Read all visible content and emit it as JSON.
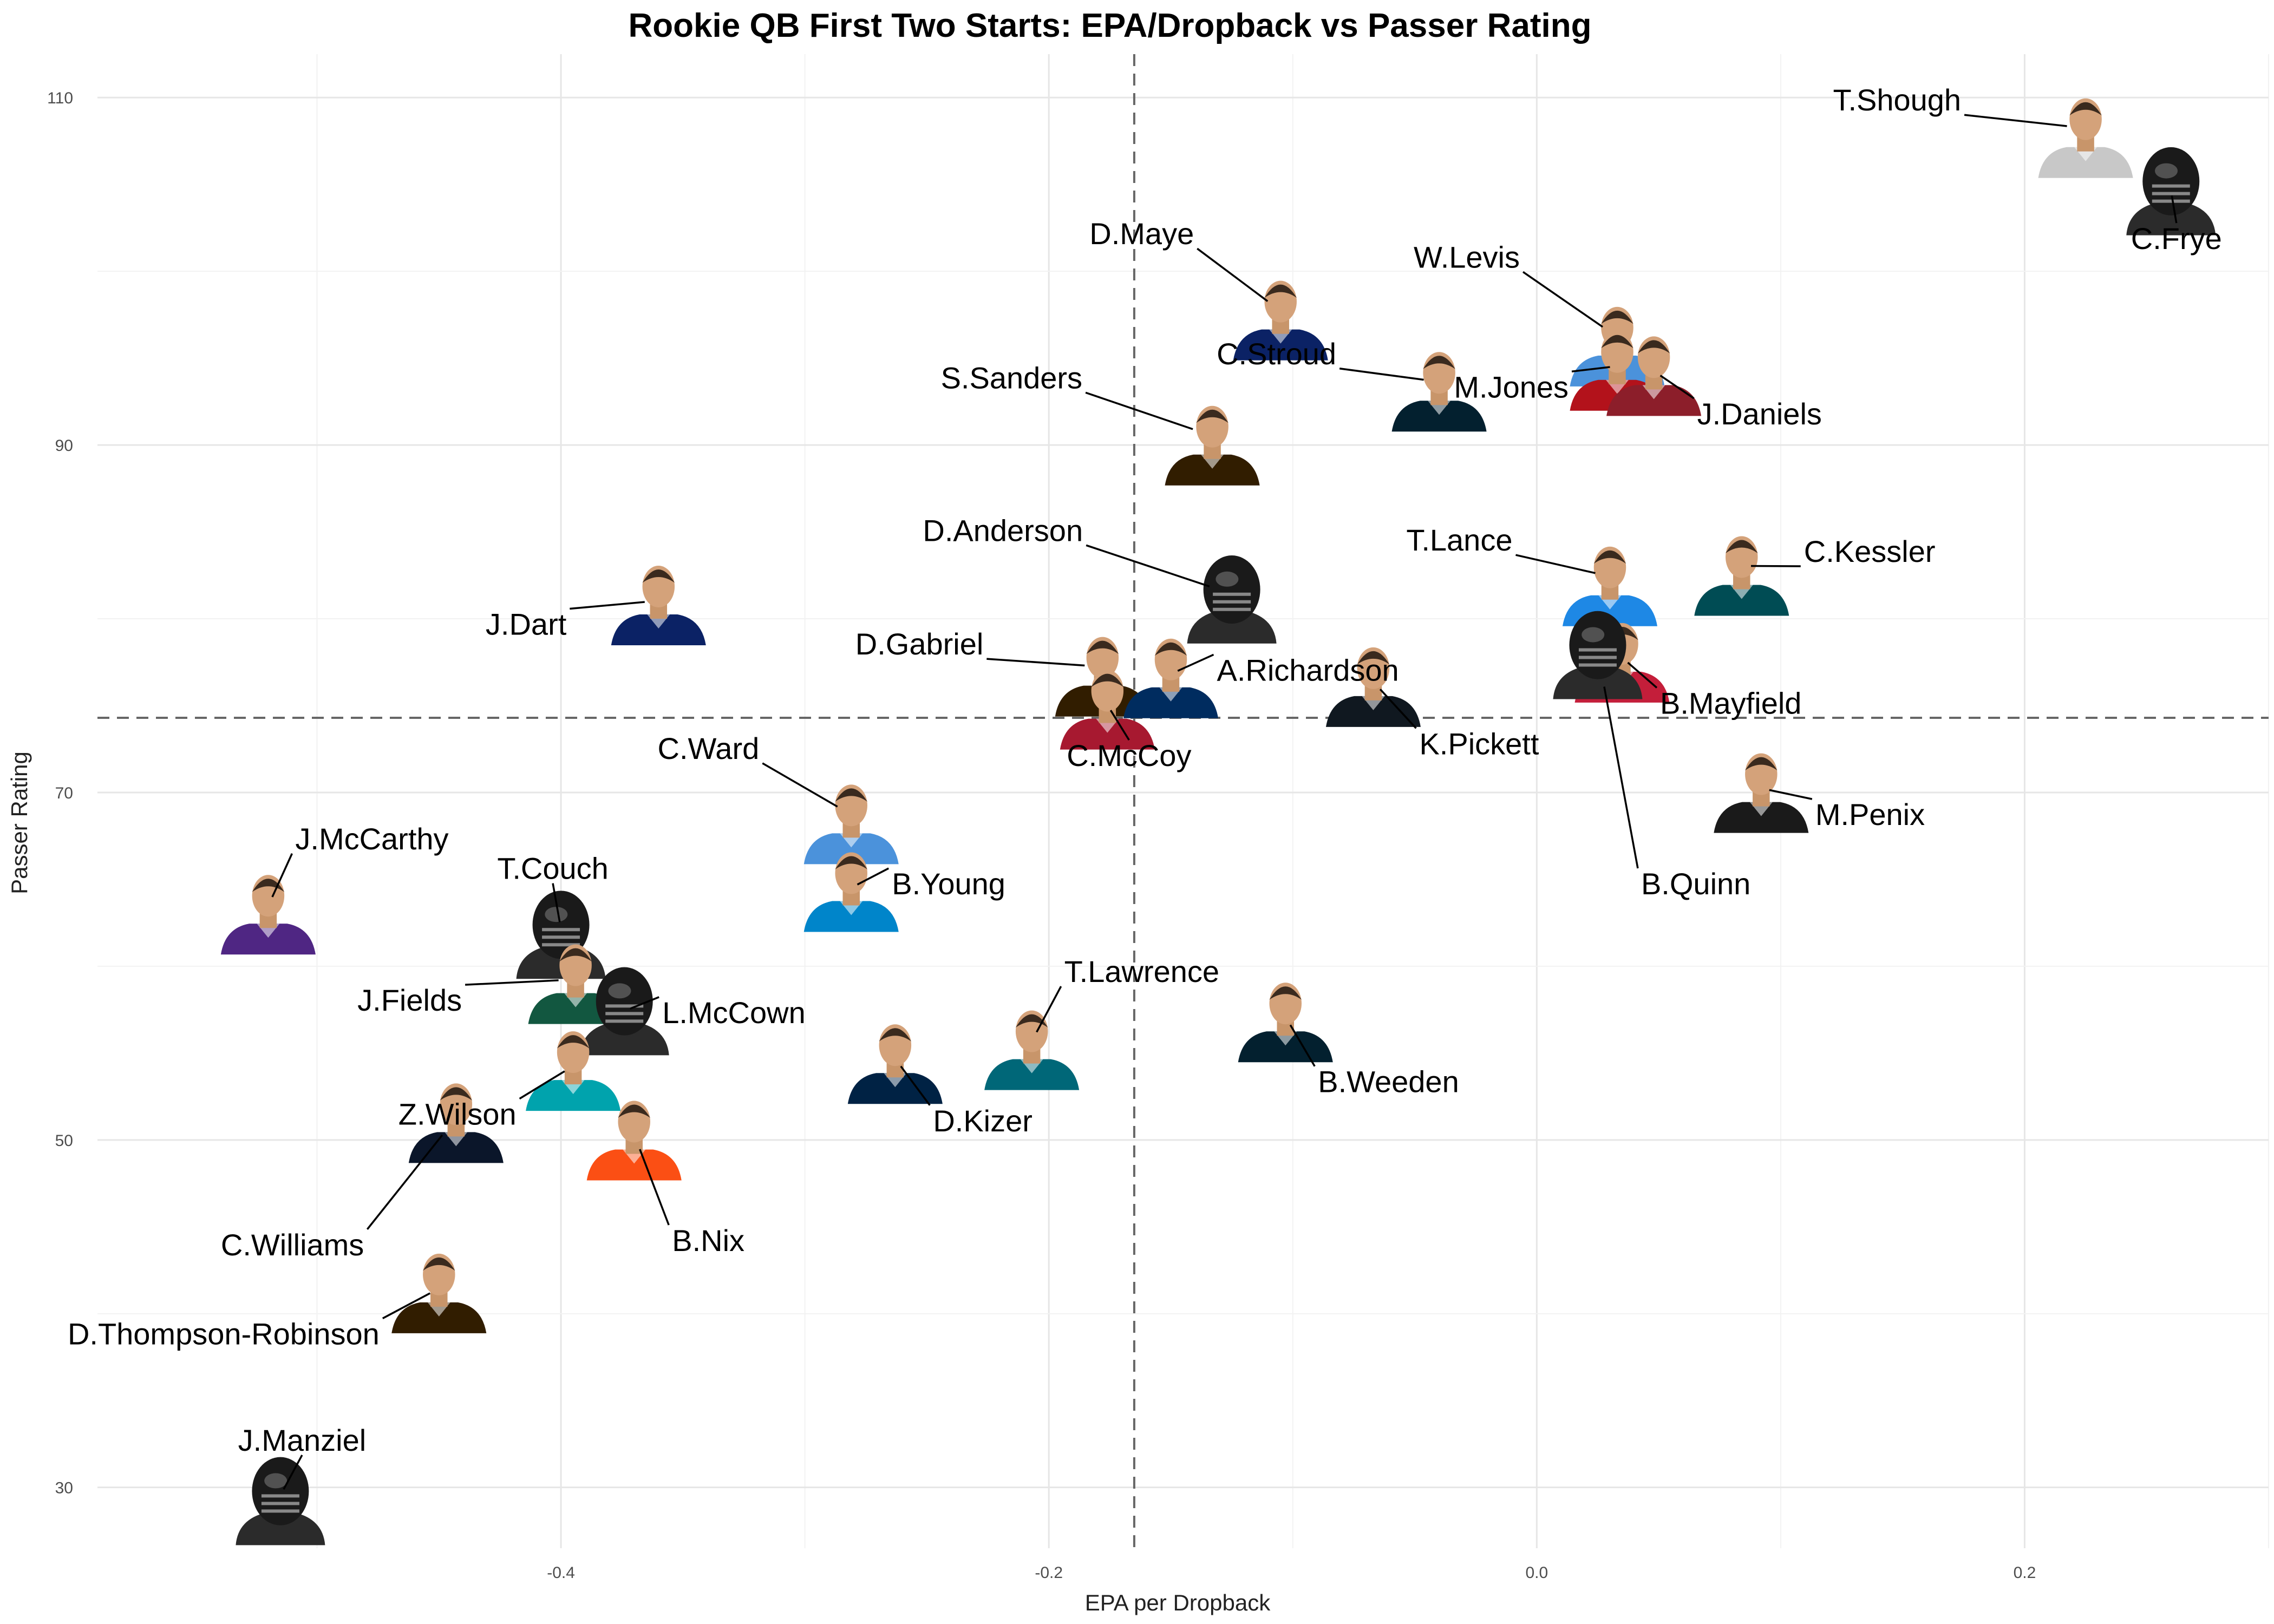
{
  "colors": {
    "background": "#ffffff",
    "grid": "#e6e6e6",
    "reference_line": "#666666",
    "text": "#000000"
  },
  "chart_data": {
    "type": "scatter",
    "title": "Rookie QB First Two Starts: EPA/Dropback vs Passer Rating",
    "xlabel": "EPA per Dropback",
    "ylabel": "Passer Rating",
    "xlim": [
      -0.59,
      0.3
    ],
    "ylim": [
      26.5,
      112.5
    ],
    "x_ticks": [
      -0.4,
      -0.2,
      0.0,
      0.2
    ],
    "x_tick_labels": [
      "-0.4",
      "-0.2",
      "0.0",
      "0.2"
    ],
    "y_ticks": [
      30,
      50,
      70,
      90,
      110
    ],
    "y_tick_labels": [
      "30",
      "50",
      "70",
      "90",
      "110"
    ],
    "grid": true,
    "legend": "none",
    "reference_lines": {
      "x": -0.165,
      "y": 74.3
    },
    "points": [
      {
        "label": "T.Shough",
        "x": 0.225,
        "y": 108.1,
        "color": "#c8c8c8",
        "helmet": false
      },
      {
        "label": "C.Frye",
        "x": 0.26,
        "y": 104.8,
        "color": "#1a1a1a",
        "helmet": true
      },
      {
        "label": "D.Maye",
        "x": -0.105,
        "y": 97.6,
        "color": "#0b2265",
        "helmet": false
      },
      {
        "label": "W.Levis",
        "x": 0.033,
        "y": 96.1,
        "color": "#4b92db",
        "helmet": false
      },
      {
        "label": "M.Jones",
        "x": 0.033,
        "y": 94.7,
        "color": "#b3121b",
        "helmet": false
      },
      {
        "label": "J.Daniels",
        "x": 0.048,
        "y": 94.4,
        "color": "#8c1e2a",
        "helmet": false
      },
      {
        "label": "C.Stroud",
        "x": -0.04,
        "y": 93.5,
        "color": "#03202f",
        "helmet": false
      },
      {
        "label": "S.Sanders",
        "x": -0.133,
        "y": 90.4,
        "color": "#311d00",
        "helmet": false
      },
      {
        "label": "D.Anderson",
        "x": -0.125,
        "y": 81.3,
        "color": "#1a1a1a",
        "helmet": true
      },
      {
        "label": "T.Lance",
        "x": 0.03,
        "y": 82.3,
        "color": "#1e88e5",
        "helmet": false
      },
      {
        "label": "C.Kessler",
        "x": 0.084,
        "y": 82.9,
        "color": "#004c54",
        "helmet": false
      },
      {
        "label": "J.Dart",
        "x": -0.36,
        "y": 81.2,
        "color": "#0b2265",
        "helmet": false
      },
      {
        "label": "B.Mayfield",
        "x": 0.035,
        "y": 77.9,
        "color": "#c41e3a",
        "helmet": false
      },
      {
        "label": "B.Quinn",
        "x": 0.025,
        "y": 78.1,
        "color": "#1a1a1a",
        "helmet": true
      },
      {
        "label": "D.Gabriel",
        "x": -0.178,
        "y": 77.1,
        "color": "#311d00",
        "helmet": false
      },
      {
        "label": "A.Richardson",
        "x": -0.15,
        "y": 77.0,
        "color": "#002c5f",
        "helmet": false
      },
      {
        "label": "K.Pickett",
        "x": -0.067,
        "y": 76.5,
        "color": "#101820",
        "helmet": false
      },
      {
        "label": "C.McCoy",
        "x": -0.176,
        "y": 75.2,
        "color": "#a71930",
        "helmet": false
      },
      {
        "label": "M.Penix",
        "x": 0.092,
        "y": 70.4,
        "color": "#1a1a1a",
        "helmet": false
      },
      {
        "label": "C.Ward",
        "x": -0.281,
        "y": 68.6,
        "color": "#4b92db",
        "helmet": false
      },
      {
        "label": "B.Young",
        "x": -0.281,
        "y": 64.7,
        "color": "#0085ca",
        "helmet": false
      },
      {
        "label": "J.McCarthy",
        "x": -0.52,
        "y": 63.4,
        "color": "#4f2683",
        "helmet": false
      },
      {
        "label": "T.Couch",
        "x": -0.4,
        "y": 62.0,
        "color": "#1a1a1a",
        "helmet": true
      },
      {
        "label": "J.Fields",
        "x": -0.394,
        "y": 59.4,
        "color": "#125740",
        "helmet": false
      },
      {
        "label": "L.McCown",
        "x": -0.374,
        "y": 57.6,
        "color": "#1a1a1a",
        "helmet": true
      },
      {
        "label": "T.Lawrence",
        "x": -0.207,
        "y": 55.6,
        "color": "#006778",
        "helmet": false
      },
      {
        "label": "B.Weeden",
        "x": -0.103,
        "y": 57.2,
        "color": "#03202f",
        "helmet": false
      },
      {
        "label": "D.Kizer",
        "x": -0.263,
        "y": 54.8,
        "color": "#002244",
        "helmet": false
      },
      {
        "label": "Z.Wilson",
        "x": -0.395,
        "y": 54.4,
        "color": "#00a3ad",
        "helmet": false
      },
      {
        "label": "C.Williams",
        "x": -0.443,
        "y": 51.4,
        "color": "#0b162a",
        "helmet": false
      },
      {
        "label": "B.Nix",
        "x": -0.37,
        "y": 50.4,
        "color": "#fb4f14",
        "helmet": false
      },
      {
        "label": "D.Thompson-Robinson",
        "x": -0.45,
        "y": 41.6,
        "color": "#311d00",
        "helmet": false
      },
      {
        "label": "J.Manziel",
        "x": -0.515,
        "y": 29.4,
        "color": "#1a1a1a",
        "helmet": true
      }
    ]
  }
}
